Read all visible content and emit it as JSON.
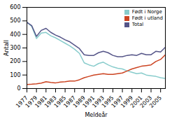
{
  "chart_data": {
    "type": "line",
    "xlabel": "Meldeår",
    "ylabel": "Antall",
    "x": [
      1977,
      1978,
      1979,
      1980,
      1981,
      1982,
      1983,
      1984,
      1985,
      1986,
      1987,
      1988,
      1989,
      1990,
      1991,
      1992,
      1993,
      1994,
      1995,
      1996,
      1997,
      1998,
      1999,
      2000,
      2001,
      2002,
      2003,
      2004,
      2005,
      2006
    ],
    "series": [
      {
        "name": "Født i Norge",
        "color": "#88cccc",
        "values": [
          490,
          460,
          370,
          410,
          415,
          390,
          375,
          355,
          335,
          315,
          290,
          260,
          190,
          175,
          165,
          185,
          195,
          175,
          160,
          150,
          145,
          130,
          120,
          110,
          115,
          100,
          95,
          90,
          80,
          75
        ]
      },
      {
        "name": "Født i utland",
        "color": "#cc4422",
        "values": [
          30,
          32,
          35,
          40,
          50,
          45,
          42,
          48,
          50,
          55,
          55,
          65,
          80,
          90,
          100,
          105,
          110,
          105,
          105,
          110,
          115,
          130,
          145,
          155,
          165,
          170,
          175,
          200,
          215,
          250
        ]
      },
      {
        "name": "Total",
        "color": "#555588",
        "values": [
          490,
          465,
          385,
          430,
          445,
          415,
          395,
          380,
          360,
          345,
          320,
          295,
          250,
          245,
          245,
          265,
          275,
          265,
          245,
          235,
          235,
          245,
          250,
          245,
          260,
          250,
          250,
          275,
          270,
          305
        ]
      }
    ],
    "xlim": [
      1977,
      2006
    ],
    "xticks": [
      1977,
      1979,
      1981,
      1983,
      1985,
      1987,
      1989,
      1991,
      1993,
      1995,
      1997,
      1999,
      2001,
      2003,
      2005
    ],
    "ylim": [
      0,
      600
    ],
    "yticks": [
      0,
      100,
      200,
      300,
      400,
      500,
      600
    ],
    "legend": "upper right"
  }
}
